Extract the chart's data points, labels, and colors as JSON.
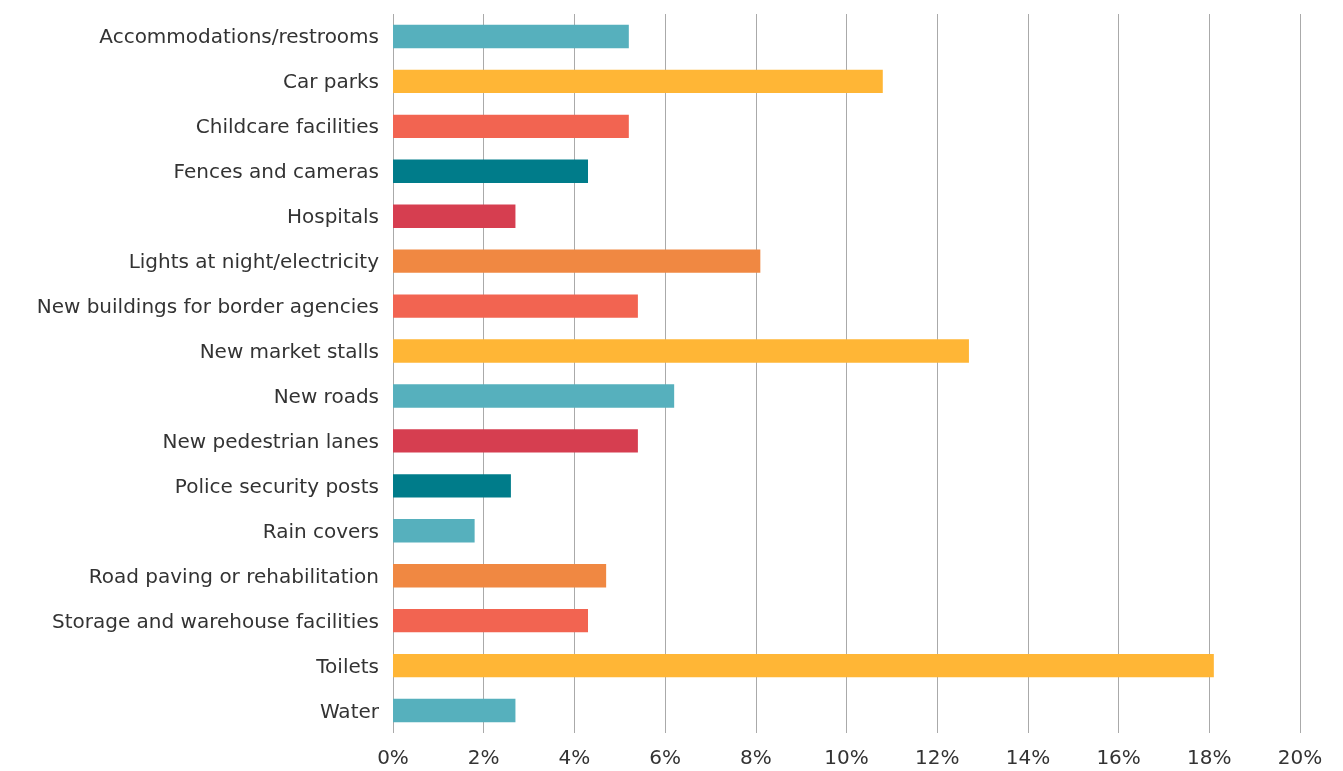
{
  "chart_data": {
    "type": "bar",
    "orientation": "horizontal",
    "categories": [
      "Accommodations/restrooms",
      "Car parks",
      "Childcare facilities",
      "Fences and cameras",
      "Hospitals",
      "Lights at night/electricity",
      "New buildings for border agencies",
      "New market stalls",
      "New roads",
      "New pedestrian lanes",
      "Police security posts",
      "Rain covers",
      "Road paving or rehabilitation",
      "Storage and warehouse facilities",
      "Toilets",
      "Water"
    ],
    "values": [
      5.2,
      10.8,
      5.2,
      4.3,
      2.7,
      8.1,
      5.4,
      12.7,
      6.2,
      5.4,
      2.6,
      1.8,
      4.7,
      4.3,
      18.1,
      2.7
    ],
    "colors": [
      "#56b0bd",
      "#ffb636",
      "#f26451",
      "#007c8a",
      "#d63e50",
      "#f08842",
      "#f26451",
      "#ffb636",
      "#56b0bd",
      "#d63e50",
      "#007c8a",
      "#56b0bd",
      "#f08842",
      "#f26451",
      "#ffb636",
      "#56b0bd"
    ],
    "xlim": [
      0,
      20
    ],
    "xticks": [
      {
        "value": 0,
        "label": "0%"
      },
      {
        "value": 2,
        "label": "2%"
      },
      {
        "value": 4,
        "label": "4%"
      },
      {
        "value": 6,
        "label": "6%"
      },
      {
        "value": 8,
        "label": "8%"
      },
      {
        "value": 10,
        "label": "10%"
      },
      {
        "value": 12,
        "label": "12%"
      },
      {
        "value": 14,
        "label": "14%"
      },
      {
        "value": 16,
        "label": "16%"
      },
      {
        "value": 18,
        "label": "18%"
      },
      {
        "value": 20,
        "label": "20%"
      }
    ],
    "grid": "x"
  }
}
